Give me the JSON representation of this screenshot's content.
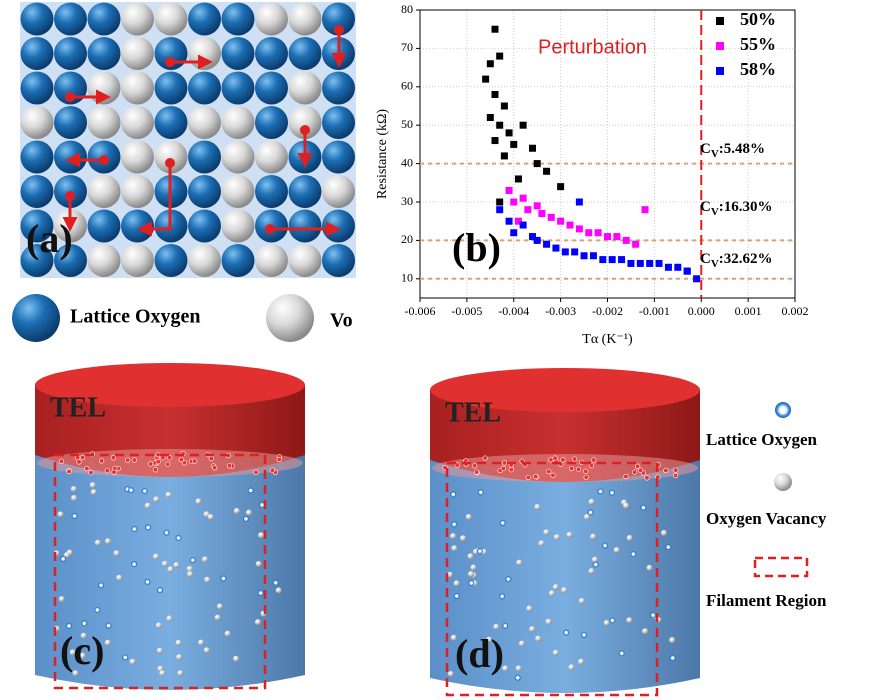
{
  "panels": {
    "a": {
      "label": "(a)",
      "legend": {
        "lattice": "Lattice Oxygen",
        "vacancy": "Vo"
      }
    },
    "c": {
      "label": "(c)",
      "electrode": "TEL"
    },
    "d": {
      "label": "(d)",
      "electrode": "TEL"
    }
  },
  "legend": {
    "lattice": "Lattice Oxygen",
    "vacancy": "Oxygen Vacancy",
    "filament": "Filament Region"
  },
  "chart_data": {
    "type": "scatter",
    "label": "(b)",
    "annotation": "Perturbation",
    "xlabel": "Tα (K⁻¹)",
    "ylabel": "Resistance (kΩ)",
    "xlim": [
      -0.006,
      0.002
    ],
    "xticks": [
      -0.006,
      -0.005,
      -0.004,
      -0.003,
      -0.002,
      -0.001,
      {
        "value": 0,
        "label": "0.000"
      },
      0.001,
      0.002
    ],
    "ylim": [
      5,
      80
    ],
    "yticks": [
      10,
      20,
      30,
      40,
      50,
      60,
      70,
      80
    ],
    "grid": true,
    "ref_lines": [
      40,
      20,
      10
    ],
    "vline": 0,
    "cv_labels": [
      {
        "symbol": "C",
        "sub": "V",
        "text": ":5.48%"
      },
      {
        "symbol": "C",
        "sub": "V",
        "text": ":16.30%"
      },
      {
        "symbol": "C",
        "sub": "V",
        "text": ":32.62%"
      }
    ],
    "series": [
      {
        "name": "50%",
        "color": "#000000",
        "x": [
          -0.0044,
          -0.0045,
          -0.0043,
          -0.0046,
          -0.0044,
          -0.0042,
          -0.0045,
          -0.0043,
          -0.0041,
          -0.0044,
          -0.004,
          -0.0038,
          -0.0042,
          -0.0036,
          -0.0035,
          -0.0033,
          -0.0039,
          -0.0043,
          -0.003,
          -0.0003
        ],
        "values": [
          75,
          66,
          68,
          62,
          58,
          55,
          52,
          50,
          48,
          46,
          45,
          50,
          42,
          44,
          40,
          38,
          36,
          30,
          34,
          12
        ]
      },
      {
        "name": "55%",
        "color": "#ff00ff",
        "x": [
          -0.0041,
          -0.004,
          -0.0038,
          -0.0037,
          -0.0035,
          -0.0034,
          -0.0032,
          -0.003,
          -0.0028,
          -0.0026,
          -0.0024,
          -0.0022,
          -0.002,
          -0.0018,
          -0.0016,
          -0.0014,
          -0.0012,
          -0.0039
        ],
        "values": [
          33,
          30,
          31,
          28,
          29,
          27,
          26,
          25,
          24,
          23,
          22,
          22,
          21,
          21,
          20,
          19,
          28,
          25
        ]
      },
      {
        "name": "58%",
        "color": "#0000ff",
        "x": [
          -0.0043,
          -0.0041,
          -0.004,
          -0.0038,
          -0.0036,
          -0.0035,
          -0.0033,
          -0.0031,
          -0.0029,
          -0.0027,
          -0.0025,
          -0.0023,
          -0.0021,
          -0.0019,
          -0.0017,
          -0.0015,
          -0.0013,
          -0.0011,
          -0.0009,
          -0.0007,
          -0.0005,
          -0.0003,
          -0.0001,
          -0.0026
        ],
        "values": [
          28,
          25,
          22,
          24,
          21,
          20,
          19,
          18,
          17,
          17,
          16,
          16,
          15,
          15,
          15,
          14,
          14,
          14,
          14,
          13,
          13,
          12,
          10,
          30
        ]
      }
    ]
  }
}
